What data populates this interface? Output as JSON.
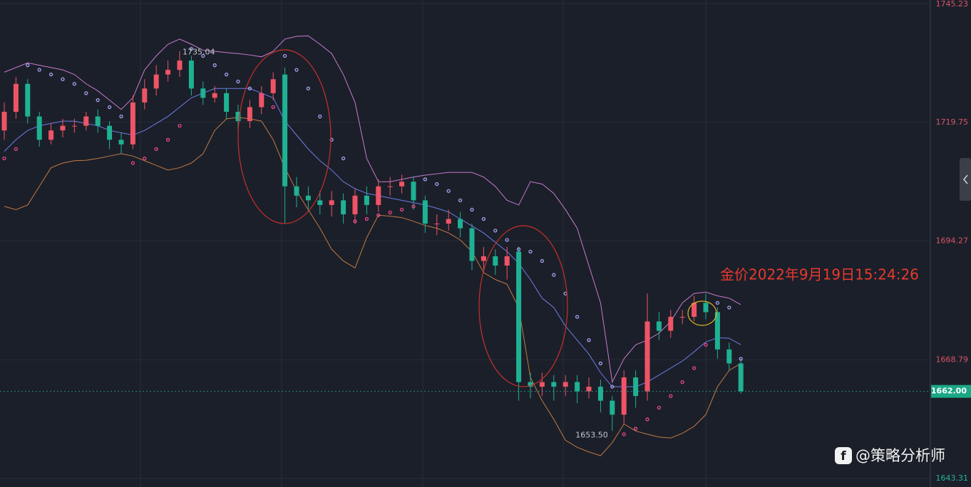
{
  "chart_data": {
    "type": "candlestick",
    "open": [
      1718,
      1722,
      1728,
      1721,
      1716,
      1718,
      1719,
      1719,
      1721,
      1719,
      1716,
      1715,
      1724,
      1727,
      1730,
      1731,
      1733,
      1727,
      1725,
      1726,
      1722,
      1720,
      1723,
      1726,
      1730,
      1706,
      1704,
      1703,
      1702,
      1703,
      1700,
      1704,
      1702,
      1706,
      1706,
      1707,
      1703,
      1698,
      1698,
      1699,
      1697,
      1690,
      1691,
      1689,
      1692,
      1664,
      1663,
      1664,
      1663,
      1664,
      1662,
      1663,
      1660,
      1657,
      1665,
      1662,
      1677,
      1675,
      1678,
      1678,
      1681,
      1679,
      1671,
      1668
    ],
    "high": [
      1724,
      1729.5,
      1729,
      1722,
      1719.5,
      1720.5,
      1720.5,
      1722,
      1722.5,
      1720,
      1717.5,
      1725.5,
      1729,
      1732,
      1733,
      1735.04,
      1734,
      1728.5,
      1727.5,
      1727,
      1723.5,
      1724.5,
      1727.5,
      1730.5,
      1731.5,
      1708,
      1706,
      1705,
      1705,
      1704.5,
      1705.5,
      1706,
      1707.5,
      1708,
      1708.5,
      1708,
      1704,
      1700,
      1701,
      1700.5,
      1698,
      1693,
      1692.5,
      1693,
      1693,
      1666,
      1666,
      1665.5,
      1665.5,
      1665.5,
      1665,
      1664.5,
      1661,
      1666.5,
      1666.5,
      1683,
      1679,
      1679.5,
      1679.5,
      1682.5,
      1683,
      1680,
      1672.5,
      1669
    ],
    "low": [
      1716,
      1720.5,
      1719.5,
      1714.5,
      1715,
      1716.5,
      1717.5,
      1718,
      1717.5,
      1714,
      1713,
      1714,
      1722.5,
      1725.5,
      1728.5,
      1729.5,
      1725.5,
      1723.5,
      1724,
      1720.5,
      1718,
      1718.5,
      1721.5,
      1724.5,
      1698,
      1701.5,
      1700.5,
      1700,
      1699.5,
      1698,
      1698,
      1700,
      1700.5,
      1704,
      1704.5,
      1701,
      1696,
      1695.5,
      1696.5,
      1695,
      1688,
      1687.5,
      1687,
      1686,
      1660,
      1660.5,
      1661,
      1660,
      1661,
      1659.5,
      1660.5,
      1657.5,
      1653.5,
      1655,
      1658.5,
      1660,
      1673,
      1673.5,
      1676.5,
      1677,
      1677.5,
      1669,
      1666.5,
      1661.5
    ],
    "close": [
      1722,
      1728,
      1721,
      1716,
      1718,
      1719,
      1719,
      1721,
      1719,
      1716,
      1715,
      1724,
      1727,
      1730,
      1731,
      1733,
      1727,
      1725,
      1726,
      1722,
      1720,
      1723,
      1726,
      1729,
      1706,
      1704,
      1703,
      1702,
      1703,
      1700,
      1704,
      1702,
      1706,
      1706,
      1707,
      1703,
      1698,
      1698,
      1699,
      1697,
      1690,
      1691,
      1689,
      1691,
      1664,
      1663,
      1664,
      1663,
      1664,
      1662,
      1663,
      1660,
      1657,
      1665,
      1661,
      1677,
      1675,
      1678,
      1678,
      1681,
      1679,
      1671,
      1668,
      1662
    ],
    "bollinger": {
      "upper": [
        1730.5,
        1731.5,
        1732.5,
        1732,
        1731.5,
        1731,
        1730,
        1728,
        1726.5,
        1724.5,
        1722.5,
        1725,
        1731,
        1734,
        1736.5,
        1737.6,
        1736.5,
        1735.2,
        1735,
        1734.7,
        1734.5,
        1734.2,
        1733.8,
        1735,
        1737.6,
        1738.2,
        1738.3,
        1736.5,
        1734.5,
        1730,
        1724,
        1712,
        1707,
        1707,
        1707.5,
        1708,
        1708.4,
        1708.7,
        1709,
        1709,
        1709,
        1708,
        1706,
        1703,
        1702,
        1707,
        1706.5,
        1704.5,
        1701,
        1697,
        1689,
        1681,
        1664,
        1669,
        1672,
        1673,
        1674.5,
        1677,
        1681,
        1683,
        1683.3,
        1682.5,
        1682,
        1680.6
      ],
      "middle": [
        1713.5,
        1716,
        1718,
        1719,
        1719.5,
        1720,
        1720,
        1719.5,
        1719,
        1718,
        1717.5,
        1717,
        1718,
        1719.5,
        1721,
        1723,
        1725,
        1726,
        1727,
        1727,
        1727,
        1727,
        1726,
        1725,
        1720,
        1717,
        1714,
        1711.5,
        1709.5,
        1707,
        1705.5,
        1704.5,
        1704,
        1703.5,
        1703,
        1702.5,
        1702,
        1701.3,
        1700.5,
        1699,
        1697.5,
        1696,
        1694,
        1692,
        1689.5,
        1686,
        1682,
        1680,
        1676,
        1673,
        1670,
        1666,
        1663,
        1663,
        1663,
        1664,
        1665.5,
        1667,
        1668.5,
        1670.5,
        1672.6,
        1673.5,
        1673.4,
        1672
      ],
      "lower": [
        1701.7,
        1701,
        1702,
        1706,
        1710,
        1711,
        1711.5,
        1711.6,
        1712,
        1712.5,
        1713,
        1712.5,
        1711.5,
        1710.5,
        1709.5,
        1710,
        1711,
        1713,
        1718,
        1720.5,
        1720.8,
        1720.5,
        1720,
        1716,
        1710,
        1705,
        1701,
        1697,
        1692.5,
        1690,
        1688.5,
        1695,
        1699.8,
        1699.6,
        1699.3,
        1698.5,
        1697.6,
        1697,
        1696,
        1694.5,
        1692,
        1687.5,
        1686,
        1685,
        1680,
        1665,
        1660,
        1656,
        1651.5,
        1650,
        1649,
        1648.2,
        1651,
        1655,
        1653.5,
        1652.8,
        1652.2,
        1652,
        1653,
        1654.5,
        1657,
        1663,
        1666.5,
        1668
      ]
    },
    "sar": [
      1712,
      1714,
      1732,
      1731,
      1730,
      1729,
      1728,
      1726,
      1724.5,
      1723,
      1721,
      1711,
      1712,
      1714,
      1716,
      1719,
      1735.5,
      1734,
      1732,
      1730,
      1728.5,
      1727,
      1725.5,
      1723,
      1734,
      1731,
      1727,
      1721,
      1716,
      1712,
      1698.5,
      1699,
      1699.8,
      1700.4,
      1701,
      1701.7,
      1707.5,
      1706.5,
      1705,
      1703,
      1701,
      1699,
      1696.5,
      1694.5,
      1692.5,
      1692,
      1690,
      1687,
      1683,
      1678,
      1673,
      1668,
      1663,
      1652.8,
      1654,
      1656,
      1658.5,
      1661,
      1664,
      1667,
      1672,
      1681,
      1680,
      1669
    ],
    "ylim": [
      1643.31,
      1745.23
    ],
    "yticks": [
      1745.23,
      1719.75,
      1694.27,
      1668.79,
      1643.31
    ],
    "last_price": {
      "value": 1662,
      "label": "1662.00"
    },
    "high_label": "1735.04",
    "low_label": "1653.50",
    "annotation": "金价2022年9月19日15:24:26",
    "watermark": "@策略分析师",
    "colors": {
      "up": "#ef5466",
      "down": "#1fb193",
      "upper": "#c77bcf",
      "middle": "#6c7de6",
      "lower": "#c27a45",
      "sar_below": "#e8488e",
      "sar_above": "#a79ff0"
    },
    "grid": true
  }
}
